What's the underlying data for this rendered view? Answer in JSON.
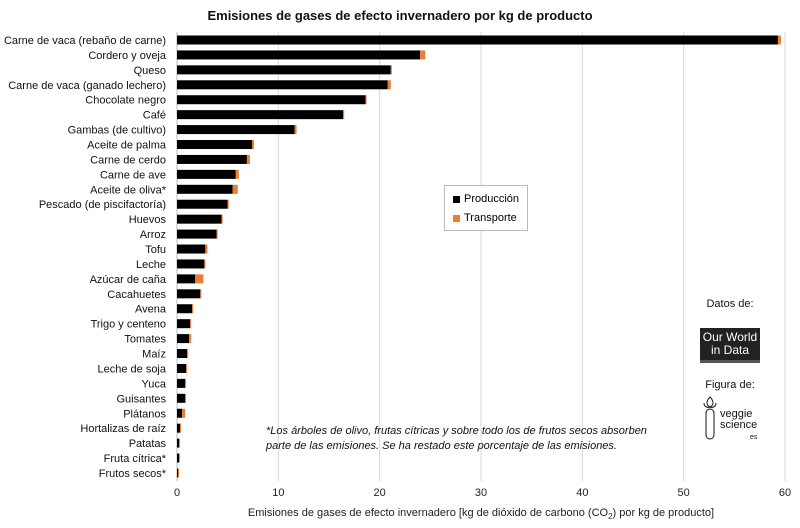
{
  "chart_data": {
    "type": "bar",
    "orientation": "horizontal",
    "stacked": true,
    "title": "Emisiones de gases de efecto invernadero por kg de producto",
    "xlabel_prefix": "Emisiones de gases de efecto invernadero [kg de dióxido de carbono (CO",
    "xlabel_sub": "2",
    "xlabel_suffix": ") por kg de producto]",
    "xlim": [
      0,
      60
    ],
    "xticks": [
      "0",
      "10",
      "20",
      "30",
      "40",
      "50",
      "60"
    ],
    "grid": true,
    "legend_position": "center",
    "categories": [
      "Carne de vaca (rebaño de carne)",
      "Cordero y oveja",
      "Queso",
      "Carne de vaca (ganado lechero)",
      "Chocolate negro",
      "Café",
      "Gambas (de cultivo)",
      "Aceite de palma",
      "Carne de cerdo",
      "Carne de ave",
      "Aceite de oliva*",
      "Pescado (de piscifactoría)",
      "Huevos",
      "Arroz",
      "Tofu",
      "Leche",
      "Azúcar de caña",
      "Cacahuetes",
      "Avena",
      "Trigo y centeno",
      "Tomates",
      "Maíz",
      "Leche de soja",
      "Yuca",
      "Guisantes",
      "Plátanos",
      "Hortalizas de raíz",
      "Patatas",
      "Fruta cítrica*",
      "Frutos secos*"
    ],
    "series": [
      {
        "name": "Producción",
        "color": "#000000",
        "values": [
          59.3,
          24.0,
          21.1,
          20.8,
          18.6,
          16.4,
          11.6,
          7.4,
          6.9,
          5.8,
          5.5,
          5.0,
          4.4,
          3.9,
          2.8,
          2.7,
          1.8,
          2.3,
          1.5,
          1.3,
          1.2,
          1.0,
          0.9,
          0.8,
          0.8,
          0.5,
          0.3,
          0.2,
          0.2,
          0.1
        ]
      },
      {
        "name": "Transporte",
        "color": "#ED7D31",
        "values": [
          0.3,
          0.5,
          0.1,
          0.3,
          0.1,
          0.1,
          0.2,
          0.2,
          0.3,
          0.3,
          0.5,
          0.1,
          0.1,
          0.1,
          0.2,
          0.1,
          0.8,
          0.1,
          0.1,
          0.1,
          0.2,
          0.1,
          0.1,
          0.1,
          0.1,
          0.3,
          0.1,
          0.1,
          0.1,
          0.1
        ]
      }
    ]
  },
  "footnote": [
    "*Los árboles de olivo, frutas cítricas y sobre todo los de frutos secos absorben",
    "parte de las emisiones. Se ha restado este porcentaje de las emisiones."
  ],
  "credits": {
    "data_label": "Datos de:",
    "data_logo": "Our World in Data",
    "figure_label": "Figura de:",
    "figure_logo": "veggie science es"
  }
}
